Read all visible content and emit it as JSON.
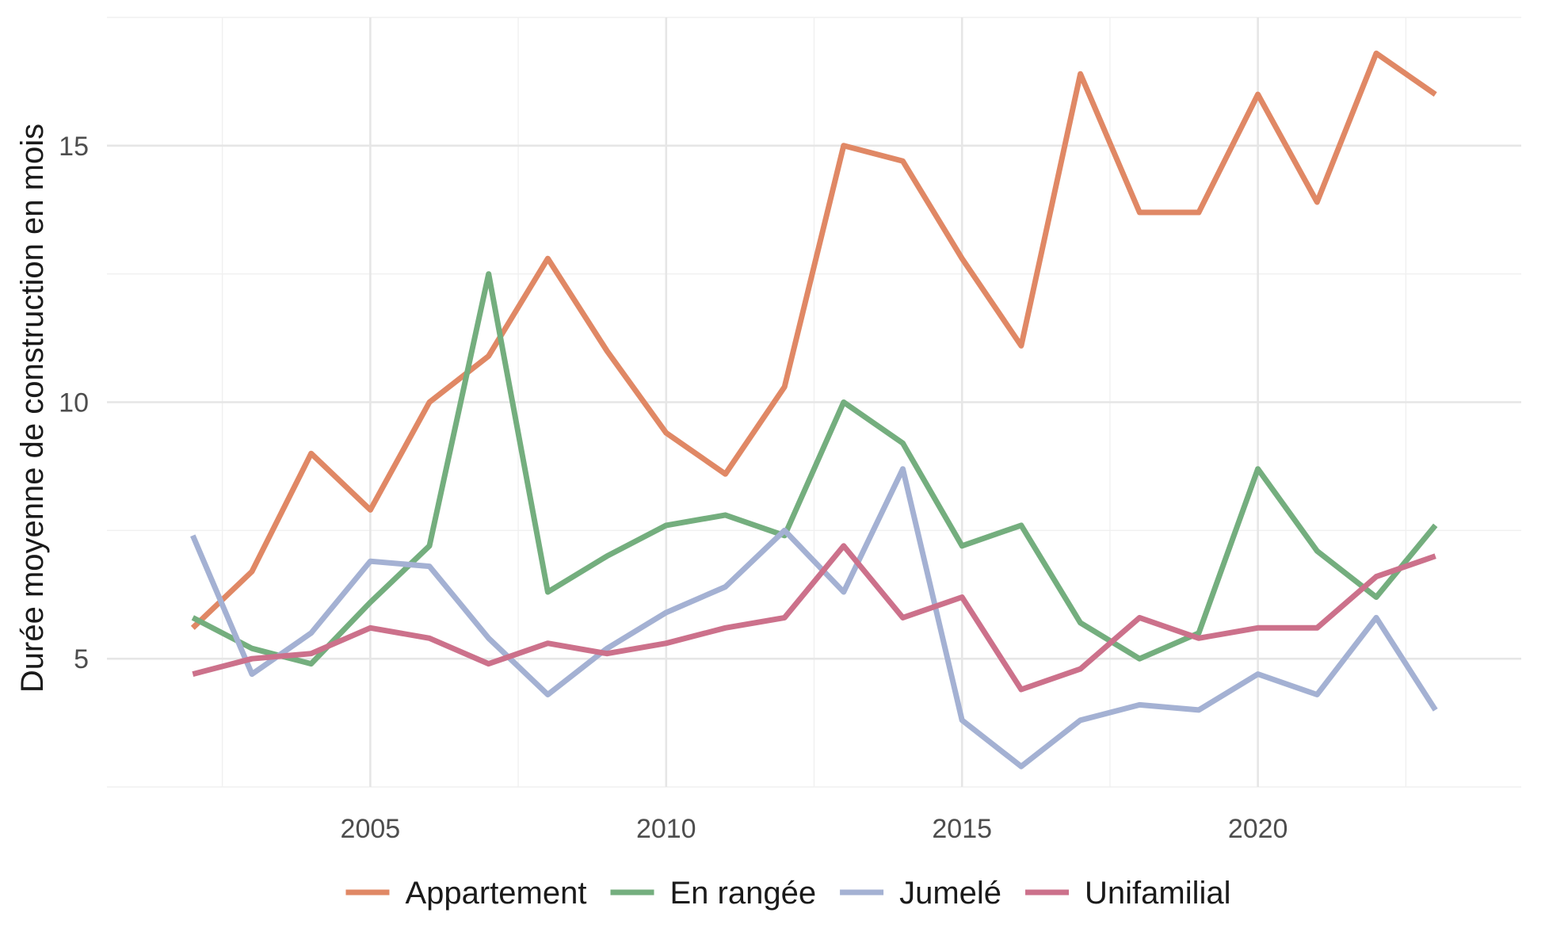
{
  "chart_data": {
    "type": "line",
    "title": "",
    "xlabel": "",
    "ylabel": "Durée moyenne de construction en mois",
    "x": [
      2002,
      2003,
      2004,
      2005,
      2006,
      2007,
      2008,
      2009,
      2010,
      2011,
      2012,
      2013,
      2014,
      2015,
      2016,
      2017,
      2018,
      2019,
      2020,
      2021,
      2022,
      2023
    ],
    "xlim": [
      2000.55,
      2024.45
    ],
    "ylim": [
      2.5,
      17.5
    ],
    "x_ticks": [
      2005,
      2010,
      2015,
      2020
    ],
    "x_tick_labels": [
      "2005",
      "2010",
      "2015",
      "2020"
    ],
    "y_ticks": [
      5,
      10,
      15
    ],
    "y_tick_labels": [
      "5",
      "10",
      "15"
    ],
    "grid": true,
    "legend_position": "bottom",
    "series": [
      {
        "name": "Appartement",
        "color": "#E08865",
        "values": [
          5.6,
          6.7,
          9.0,
          7.9,
          10.0,
          10.9,
          12.8,
          11.0,
          9.4,
          8.6,
          10.3,
          15.0,
          14.7,
          12.8,
          11.1,
          16.4,
          13.7,
          13.7,
          16.0,
          13.9,
          16.8,
          16.0
        ]
      },
      {
        "name": "En rangée",
        "color": "#74AE7E",
        "values": [
          5.8,
          5.2,
          4.9,
          6.1,
          7.2,
          12.5,
          6.3,
          7.0,
          7.6,
          7.8,
          7.4,
          10.0,
          9.2,
          7.2,
          7.6,
          5.7,
          5.0,
          5.5,
          8.7,
          7.1,
          6.2,
          7.6
        ]
      },
      {
        "name": "Jumelé",
        "color": "#A4B1D3",
        "values": [
          7.4,
          4.7,
          5.5,
          6.9,
          6.8,
          5.4,
          4.3,
          5.2,
          5.9,
          6.4,
          7.5,
          6.3,
          8.7,
          3.8,
          2.9,
          3.8,
          4.1,
          4.0,
          4.7,
          4.3,
          5.8,
          4.0
        ]
      },
      {
        "name": "Unifamilial",
        "color": "#CC718B",
        "values": [
          4.7,
          5.0,
          5.1,
          5.6,
          5.4,
          4.9,
          5.3,
          5.1,
          5.3,
          5.6,
          5.8,
          7.2,
          5.8,
          6.2,
          4.4,
          4.8,
          5.8,
          5.4,
          5.6,
          5.6,
          6.6,
          7.0
        ]
      }
    ]
  }
}
